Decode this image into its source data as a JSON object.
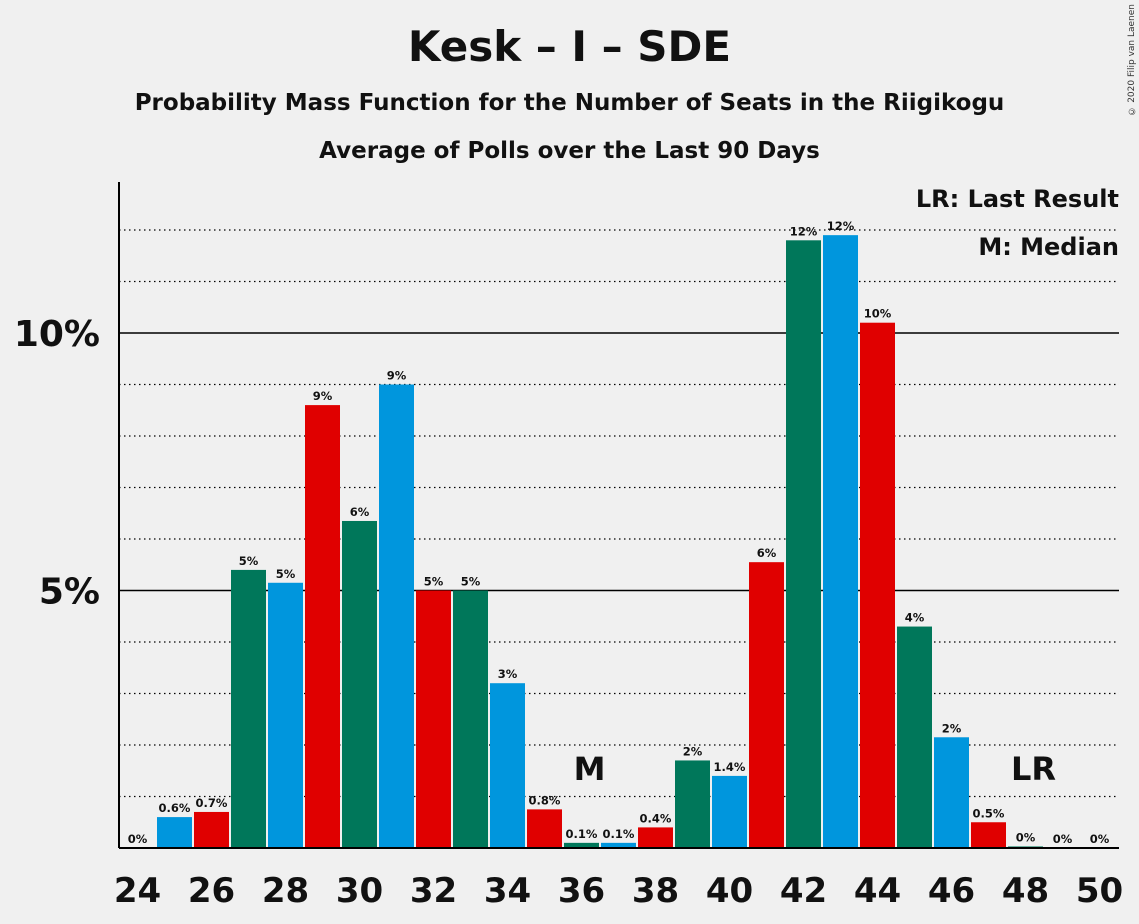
{
  "copyright": "© 2020 Filip van Laenen",
  "legend": {
    "last_result": "LR: Last Result",
    "median": "M: Median"
  },
  "colors": {
    "green": "#00775a",
    "blue": "#0096dd",
    "red": "#e00000",
    "background": "#f0f0f0"
  },
  "chart_data": {
    "type": "bar",
    "title": "Kesk – I – SDE",
    "subtitle": [
      "Probability Mass Function for the Number of Seats in the Riigikogu",
      "Average of Polls over the Last 90 Days"
    ],
    "xlabel": "",
    "ylabel": "",
    "x": [
      24,
      25,
      26,
      27,
      28,
      29,
      30,
      31,
      32,
      33,
      34,
      35,
      36,
      37,
      38,
      39,
      40,
      41,
      42,
      43,
      44,
      45,
      46,
      47,
      48,
      49,
      50
    ],
    "values": [
      0,
      0.6,
      0.7,
      5.4,
      5.15,
      8.6,
      6.35,
      9.0,
      5.0,
      5.0,
      3.2,
      0.75,
      0.1,
      0.1,
      0.4,
      1.7,
      1.4,
      5.55,
      11.8,
      11.9,
      10.2,
      4.3,
      2.15,
      0.5,
      0.03,
      0,
      0
    ],
    "labels": [
      "0%",
      "0.6%",
      "0.7%",
      "5%",
      "5%",
      "9%",
      "6%",
      "9%",
      "5%",
      "5%",
      "3%",
      "0.8%",
      "0.1%",
      "0.1%",
      "0.4%",
      "2%",
      "1.4%",
      "6%",
      "12%",
      "12%",
      "10%",
      "4%",
      "2%",
      "0.5%",
      "0%",
      "0%",
      "0%"
    ],
    "bar_colors": [
      "blue",
      "blue",
      "red",
      "green",
      "blue",
      "red",
      "green",
      "blue",
      "red",
      "green",
      "blue",
      "red",
      "green",
      "blue",
      "red",
      "green",
      "blue",
      "red",
      "green",
      "blue",
      "red",
      "green",
      "blue",
      "red",
      "green",
      "blue",
      "red"
    ],
    "x_ticks": [
      24,
      26,
      28,
      30,
      32,
      34,
      36,
      38,
      40,
      42,
      44,
      46,
      48,
      50
    ],
    "y_ticks": [
      {
        "value": 5,
        "label": "5%"
      },
      {
        "value": 10,
        "label": "10%"
      }
    ],
    "ylim": [
      0,
      12.9
    ],
    "markers": [
      {
        "x": 36,
        "text": "M"
      },
      {
        "x": 48,
        "text": "LR"
      }
    ],
    "grid": "dotted every 1%, solid at 5% and 10%"
  }
}
